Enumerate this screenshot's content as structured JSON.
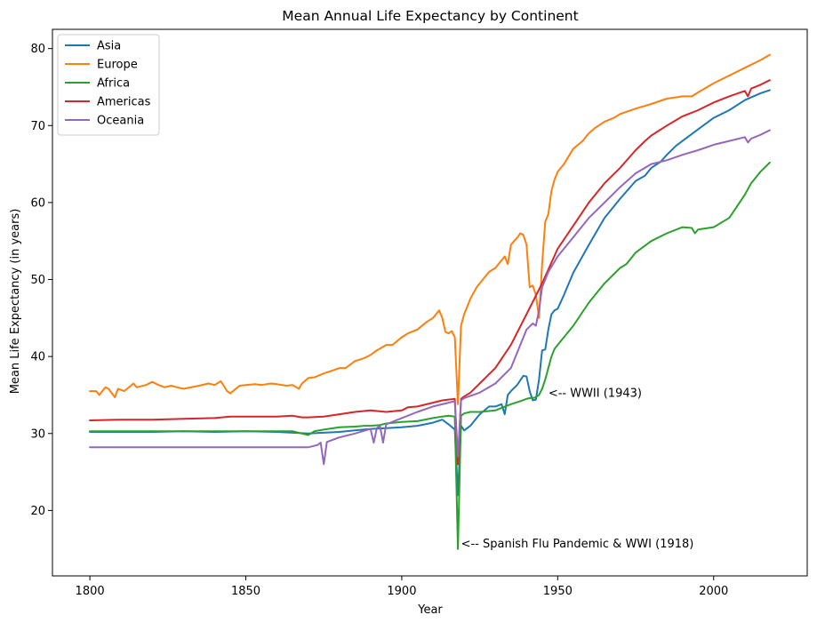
{
  "chart_data": {
    "type": "line",
    "title": "Mean Annual Life Expectancy by Continent",
    "xlabel": "Year",
    "ylabel": "Mean Life Expectancy (in years)",
    "xlim": [
      1788,
      2030
    ],
    "ylim": [
      11.5,
      82.5
    ],
    "xticks": [
      1800,
      1850,
      1900,
      1950,
      2000
    ],
    "yticks": [
      20,
      30,
      40,
      50,
      60,
      70,
      80
    ],
    "grid": false,
    "legend": "top-left",
    "series": [
      {
        "name": "Asia",
        "color": "#1f77b4",
        "x": [
          1800,
          1810,
          1820,
          1830,
          1840,
          1850,
          1860,
          1870,
          1875,
          1880,
          1885,
          1890,
          1895,
          1900,
          1905,
          1910,
          1913,
          1915,
          1917,
          1918,
          1919,
          1920,
          1922,
          1925,
          1928,
          1930,
          1932,
          1933,
          1934,
          1935,
          1937,
          1939,
          1940,
          1941,
          1942,
          1943,
          1944,
          1945,
          1946,
          1947,
          1948,
          1949,
          1950,
          1952,
          1955,
          1960,
          1965,
          1970,
          1975,
          1978,
          1980,
          1983,
          1985,
          1987,
          1988,
          1990,
          1995,
          2000,
          2005,
          2010,
          2015,
          2018
        ],
        "y": [
          30.2,
          30.2,
          30.2,
          30.3,
          30.2,
          30.3,
          30.2,
          30.0,
          30.1,
          30.2,
          30.4,
          30.6,
          30.7,
          30.8,
          31.0,
          31.4,
          31.8,
          31.2,
          30.5,
          22.0,
          31.0,
          30.4,
          31.0,
          32.5,
          33.5,
          33.5,
          33.8,
          32.5,
          35.0,
          35.5,
          36.3,
          37.5,
          37.4,
          35.5,
          34.3,
          34.4,
          37.0,
          40.8,
          40.9,
          43.5,
          45.5,
          46.0,
          46.2,
          48.0,
          50.9,
          54.5,
          58.0,
          60.5,
          62.8,
          63.5,
          64.5,
          65.3,
          66.2,
          67.0,
          67.4,
          68.0,
          69.5,
          71.0,
          72.0,
          73.3,
          74.2,
          74.6
        ]
      },
      {
        "name": "Europe",
        "color": "#ff7f0e",
        "x": [
          1800,
          1802,
          1803,
          1805,
          1806,
          1808,
          1809,
          1811,
          1814,
          1815,
          1818,
          1820,
          1822,
          1824,
          1826,
          1828,
          1830,
          1835,
          1838,
          1840,
          1842,
          1844,
          1845,
          1848,
          1850,
          1853,
          1855,
          1858,
          1860,
          1863,
          1865,
          1867,
          1868,
          1870,
          1872,
          1875,
          1878,
          1880,
          1882,
          1885,
          1888,
          1890,
          1892,
          1895,
          1897,
          1900,
          1902,
          1905,
          1908,
          1910,
          1912,
          1913,
          1914,
          1915,
          1916,
          1917,
          1918,
          1919,
          1920,
          1922,
          1924,
          1926,
          1928,
          1930,
          1932,
          1933,
          1934,
          1935,
          1936,
          1937,
          1938,
          1939,
          1940,
          1941,
          1942,
          1943,
          1944,
          1945,
          1946,
          1947,
          1948,
          1949,
          1950,
          1952,
          1955,
          1958,
          1960,
          1962,
          1965,
          1968,
          1970,
          1975,
          1980,
          1985,
          1990,
          1993,
          1995,
          2000,
          2005,
          2010,
          2015,
          2018
        ],
        "y": [
          35.5,
          35.5,
          35.0,
          36.0,
          35.8,
          34.7,
          35.8,
          35.5,
          36.5,
          36.0,
          36.3,
          36.7,
          36.3,
          36.0,
          36.2,
          36.0,
          35.8,
          36.2,
          36.5,
          36.3,
          36.8,
          35.5,
          35.2,
          36.2,
          36.3,
          36.4,
          36.3,
          36.5,
          36.4,
          36.2,
          36.3,
          35.8,
          36.5,
          37.2,
          37.3,
          37.8,
          38.2,
          38.5,
          38.5,
          39.4,
          39.8,
          40.2,
          40.8,
          41.5,
          41.5,
          42.5,
          43.0,
          43.5,
          44.5,
          45.0,
          46.0,
          45.0,
          43.2,
          43.0,
          43.3,
          42.5,
          33.8,
          44.0,
          45.5,
          47.5,
          49.0,
          50.0,
          51.0,
          51.5,
          52.5,
          53.0,
          52.0,
          54.5,
          55.0,
          55.4,
          56.0,
          55.8,
          54.5,
          49.0,
          49.2,
          48.0,
          45.0,
          52.0,
          57.5,
          58.5,
          61.5,
          63.0,
          64.0,
          65.0,
          67.0,
          68.0,
          69.0,
          69.7,
          70.5,
          71.0,
          71.5,
          72.2,
          72.8,
          73.5,
          73.8,
          73.8,
          74.3,
          75.5,
          76.5,
          77.5,
          78.5,
          79.2
        ]
      },
      {
        "name": "Africa",
        "color": "#2ca02c",
        "x": [
          1800,
          1810,
          1820,
          1830,
          1840,
          1850,
          1860,
          1865,
          1868,
          1870,
          1872,
          1875,
          1880,
          1885,
          1888,
          1890,
          1893,
          1895,
          1900,
          1905,
          1910,
          1913,
          1915,
          1917,
          1918,
          1919,
          1920,
          1922,
          1925,
          1930,
          1935,
          1938,
          1940,
          1941,
          1942,
          1943,
          1944,
          1945,
          1946,
          1947,
          1948,
          1949,
          1950,
          1955,
          1960,
          1965,
          1970,
          1972,
          1975,
          1980,
          1985,
          1990,
          1993,
          1994,
          1995,
          2000,
          2005,
          2010,
          2012,
          2015,
          2018
        ],
        "y": [
          30.3,
          30.3,
          30.3,
          30.3,
          30.3,
          30.3,
          30.3,
          30.3,
          30.0,
          29.8,
          30.3,
          30.5,
          30.8,
          30.9,
          31.0,
          31.0,
          31.1,
          31.3,
          31.5,
          31.6,
          32.0,
          32.2,
          32.3,
          32.2,
          15.0,
          32.3,
          32.6,
          32.8,
          32.8,
          33.0,
          33.8,
          34.2,
          34.5,
          34.6,
          34.6,
          34.7,
          35.0,
          35.8,
          37.0,
          38.5,
          40.0,
          41.0,
          41.5,
          44.0,
          47.0,
          49.5,
          51.5,
          52.0,
          53.5,
          55.0,
          56.0,
          56.8,
          56.7,
          56.0,
          56.5,
          56.8,
          58.0,
          61.0,
          62.5,
          64.0,
          65.2
        ]
      },
      {
        "name": "Americas",
        "color": "#d62728",
        "x": [
          1800,
          1810,
          1820,
          1830,
          1840,
          1845,
          1850,
          1860,
          1865,
          1868,
          1870,
          1875,
          1880,
          1885,
          1890,
          1895,
          1900,
          1902,
          1905,
          1910,
          1913,
          1915,
          1917,
          1918,
          1919,
          1920,
          1922,
          1925,
          1930,
          1935,
          1940,
          1945,
          1950,
          1955,
          1960,
          1965,
          1970,
          1975,
          1978,
          1980,
          1985,
          1990,
          1995,
          2000,
          2005,
          2010,
          2011,
          2012,
          2015,
          2018
        ],
        "y": [
          31.7,
          31.8,
          31.8,
          31.9,
          32.0,
          32.2,
          32.2,
          32.2,
          32.3,
          32.1,
          32.1,
          32.2,
          32.5,
          32.8,
          33.0,
          32.8,
          33.0,
          33.4,
          33.5,
          34.0,
          34.3,
          34.4,
          34.5,
          26.0,
          34.5,
          34.8,
          35.3,
          36.5,
          38.5,
          41.5,
          45.5,
          49.5,
          54.0,
          57.0,
          60.0,
          62.5,
          64.5,
          66.8,
          68.0,
          68.7,
          70.0,
          71.2,
          72.0,
          73.0,
          73.8,
          74.5,
          73.8,
          74.8,
          75.3,
          75.9
        ]
      },
      {
        "name": "Oceania",
        "color": "#9467bd",
        "x": [
          1800,
          1810,
          1820,
          1830,
          1840,
          1850,
          1860,
          1868,
          1870,
          1873,
          1874,
          1875,
          1876,
          1880,
          1885,
          1890,
          1891,
          1892,
          1893,
          1894,
          1895,
          1900,
          1905,
          1910,
          1915,
          1917,
          1918,
          1919,
          1920,
          1925,
          1930,
          1935,
          1940,
          1942,
          1943,
          1944,
          1945,
          1947,
          1950,
          1955,
          1960,
          1965,
          1970,
          1975,
          1980,
          1985,
          1990,
          1995,
          2000,
          2005,
          2010,
          2011,
          2012,
          2015,
          2018
        ],
        "y": [
          28.2,
          28.2,
          28.2,
          28.2,
          28.2,
          28.2,
          28.2,
          28.2,
          28.2,
          28.5,
          28.8,
          26.0,
          28.9,
          29.5,
          30.0,
          30.6,
          28.8,
          30.7,
          31.0,
          28.8,
          31.2,
          32.0,
          32.8,
          33.5,
          34.0,
          34.2,
          27.0,
          34.3,
          34.6,
          35.3,
          36.5,
          38.5,
          43.5,
          44.3,
          44.0,
          46.0,
          49.0,
          51.0,
          53.0,
          55.5,
          58.0,
          60.0,
          62.0,
          63.8,
          65.0,
          65.5,
          66.2,
          66.8,
          67.5,
          68.0,
          68.5,
          67.8,
          68.3,
          68.8,
          69.4
        ]
      }
    ],
    "annotations": [
      {
        "text": "<-- WWII (1943)",
        "x": 1947,
        "y": 35.3
      },
      {
        "text": "<-- Spanish Flu Pandemic & WWI (1918)",
        "x": 1919,
        "y": 15.7
      }
    ]
  }
}
